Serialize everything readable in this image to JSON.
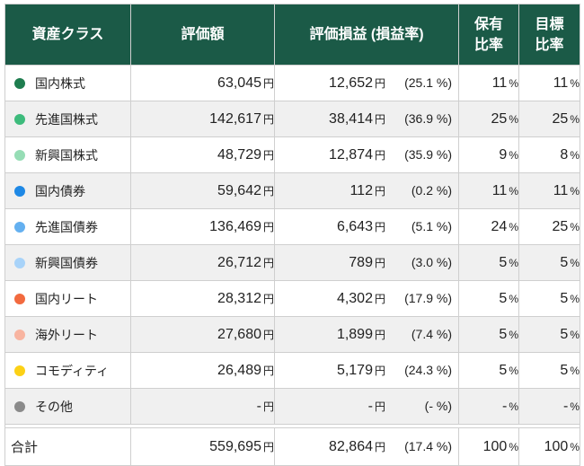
{
  "headers": {
    "asset_class": "資産クラス",
    "value": "評価額",
    "pnl": "評価損益 (損益率)",
    "holding_ratio_1": "保有",
    "holding_ratio_2": "比率",
    "target_ratio_1": "目標",
    "target_ratio_2": "比率"
  },
  "units": {
    "yen": "円",
    "percent": "%"
  },
  "colors": {
    "header_bg": "#1b5a47",
    "row_alt_bg": "#f0f0f0"
  },
  "rows": [
    {
      "name": "国内株式",
      "color": "#1e7d4f",
      "value": "63,045",
      "pnl": "12,652",
      "rate": "(25.1 %)",
      "holding": "11",
      "target": "11"
    },
    {
      "name": "先進国株式",
      "color": "#3dbb7c",
      "value": "142,617",
      "pnl": "38,414",
      "rate": "(36.9 %)",
      "holding": "25",
      "target": "25"
    },
    {
      "name": "新興国株式",
      "color": "#96ddb5",
      "value": "48,729",
      "pnl": "12,874",
      "rate": "(35.9 %)",
      "holding": "9",
      "target": "8"
    },
    {
      "name": "国内債券",
      "color": "#1e88e5",
      "value": "59,642",
      "pnl": "112",
      "rate": "(0.2 %)",
      "holding": "11",
      "target": "11"
    },
    {
      "name": "先進国債券",
      "color": "#64b0f0",
      "value": "136,469",
      "pnl": "6,643",
      "rate": "(5.1 %)",
      "holding": "24",
      "target": "25"
    },
    {
      "name": "新興国債券",
      "color": "#a8d3f9",
      "value": "26,712",
      "pnl": "789",
      "rate": "(3.0 %)",
      "holding": "5",
      "target": "5"
    },
    {
      "name": "国内リート",
      "color": "#f26a3f",
      "value": "28,312",
      "pnl": "4,302",
      "rate": "(17.9 %)",
      "holding": "5",
      "target": "5"
    },
    {
      "name": "海外リート",
      "color": "#f8b4a0",
      "value": "27,680",
      "pnl": "1,899",
      "rate": "(7.4 %)",
      "holding": "5",
      "target": "5"
    },
    {
      "name": "コモディティ",
      "color": "#fcd116",
      "value": "26,489",
      "pnl": "5,179",
      "rate": "(24.3 %)",
      "holding": "5",
      "target": "5"
    },
    {
      "name": "その他",
      "color": "#8a8a8a",
      "value": "-",
      "pnl": "-",
      "rate": "(- %)",
      "holding": "-",
      "target": "-"
    }
  ],
  "total": {
    "name": "合計",
    "value": "559,695",
    "pnl": "82,864",
    "rate": "(17.4 %)",
    "holding": "100",
    "target": "100"
  }
}
